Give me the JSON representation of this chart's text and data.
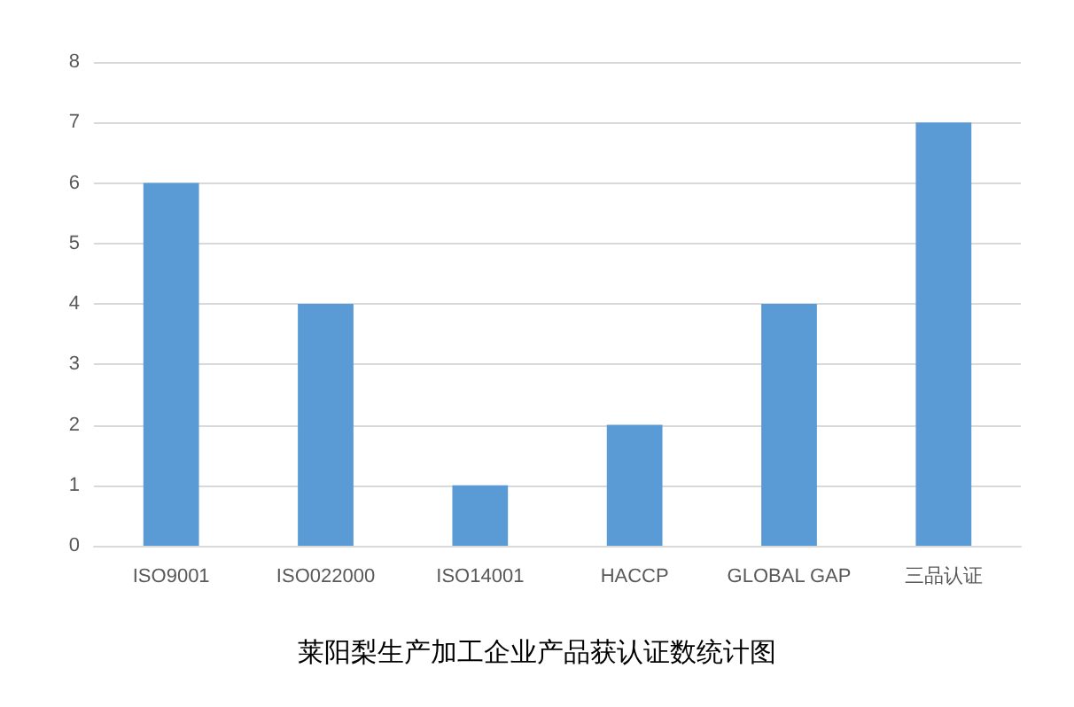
{
  "chart_data": {
    "type": "bar",
    "title": "莱阳梨生产加工企业产品获认证数统计图",
    "categories": [
      "ISO9001",
      "ISO022000",
      "ISO14001",
      "HACCP",
      "GLOBAL GAP",
      "三品认证"
    ],
    "values": [
      6,
      4,
      1,
      2,
      4,
      7
    ],
    "color": "#5b9bd5",
    "ylim": [
      0,
      8
    ],
    "yticks": [
      0,
      1,
      2,
      3,
      4,
      5,
      6,
      7,
      8
    ],
    "grid": "y"
  }
}
